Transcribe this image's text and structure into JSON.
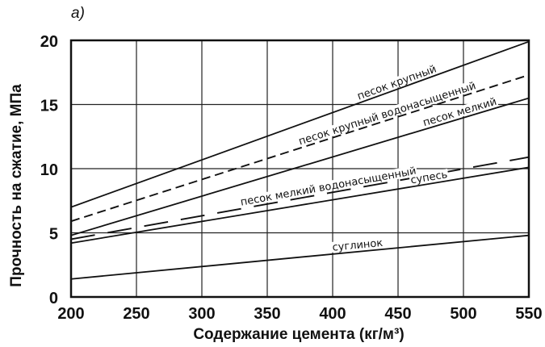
{
  "chart_data": {
    "type": "line",
    "panel_label": "a)",
    "xlabel": "Содержание цемента   (кг/м³)",
    "ylabel": "Прочность на сжатие, МПа",
    "xlim": [
      200,
      550
    ],
    "ylim": [
      0,
      20
    ],
    "x_ticks": [
      "200",
      "250",
      "300",
      "350",
      "400",
      "450",
      "500",
      "550"
    ],
    "y_ticks": [
      "0",
      "5",
      "10",
      "15",
      "20"
    ],
    "grid": true,
    "series": [
      {
        "name": "песок крупный",
        "style": "solid",
        "x": [
          200,
          550
        ],
        "y": [
          7.0,
          19.9
        ]
      },
      {
        "name": "песок крупный водонасыщенный",
        "style": "dashed",
        "x": [
          200,
          550
        ],
        "y": [
          5.9,
          17.3
        ]
      },
      {
        "name": "песок мелкий",
        "style": "solid",
        "x": [
          200,
          550
        ],
        "y": [
          4.8,
          15.5
        ]
      },
      {
        "name": "песок мелкий водонасыщенный",
        "style": "longdash",
        "x": [
          200,
          550
        ],
        "y": [
          4.5,
          10.9
        ]
      },
      {
        "name": "супесь",
        "style": "solid",
        "x": [
          200,
          550
        ],
        "y": [
          4.2,
          10.1
        ]
      },
      {
        "name": "суглинок",
        "style": "solid",
        "x": [
          200,
          550
        ],
        "y": [
          1.4,
          4.8
        ]
      }
    ]
  }
}
